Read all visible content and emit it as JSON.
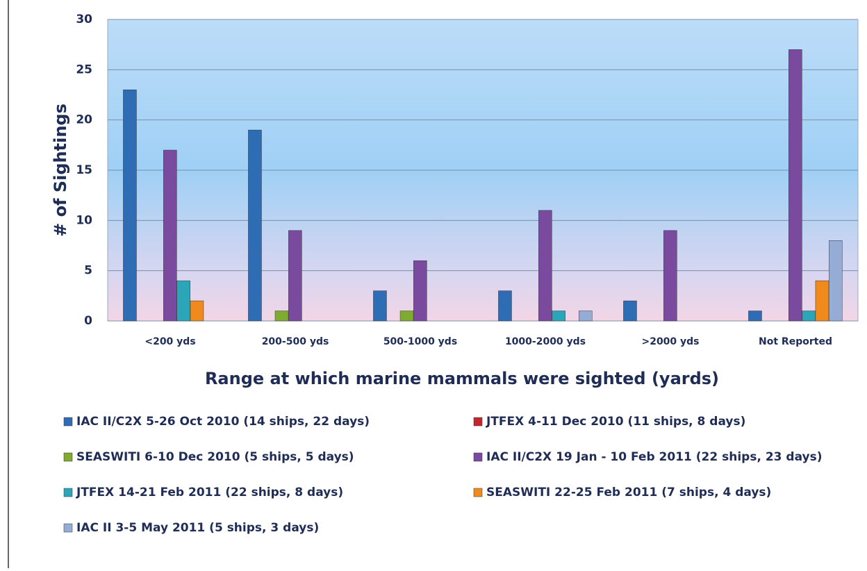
{
  "chart_data": {
    "type": "bar",
    "y_label": "# of Sightings",
    "x_label": "Range at which marine mammals were sighted (yards)",
    "categories": [
      "<200 yds",
      "200-500 yds",
      "500-1000 yds",
      "1000-2000 yds",
      ">2000 yds",
      "Not Reported"
    ],
    "series": [
      {
        "name": "IAC II/C2X 5-26 Oct 2010 (14 ships, 22 days)",
        "color": "#2e6db4",
        "values": [
          23,
          19,
          3,
          3,
          2,
          1
        ]
      },
      {
        "name": "JTFEX 4-11 Dec 2010 (11 ships, 8 days)",
        "color": "#c0282d",
        "values": [
          0,
          0,
          0,
          0,
          0,
          0
        ]
      },
      {
        "name": "SEASWITI  6-10 Dec 2010 (5 ships, 5 days)",
        "color": "#7fab2f",
        "values": [
          0,
          1,
          1,
          0,
          0,
          0
        ]
      },
      {
        "name": "IAC II/C2X 19 Jan - 10 Feb 2011 (22 ships, 23 days)",
        "color": "#7a4a9e",
        "values": [
          17,
          9,
          6,
          11,
          9,
          27
        ]
      },
      {
        "name": "JTFEX 14-21 Feb 2011 (22 ships, 8 days)",
        "color": "#2aa6b8",
        "values": [
          4,
          0,
          0,
          1,
          0,
          1
        ]
      },
      {
        "name": "SEASWITI  22-25 Feb 2011 (7 ships, 4 days)",
        "color": "#f08a1c",
        "values": [
          2,
          0,
          0,
          0,
          0,
          4
        ]
      },
      {
        "name": "IAC II 3-5 May 2011 (5 ships, 3 days)",
        "color": "#95acd4",
        "values": [
          0,
          0,
          0,
          1,
          0,
          8
        ]
      }
    ],
    "ylim": [
      0,
      30
    ],
    "yticks": [
      0,
      5,
      10,
      15,
      20,
      25,
      30
    ],
    "grid": true,
    "legend": "bottom"
  }
}
